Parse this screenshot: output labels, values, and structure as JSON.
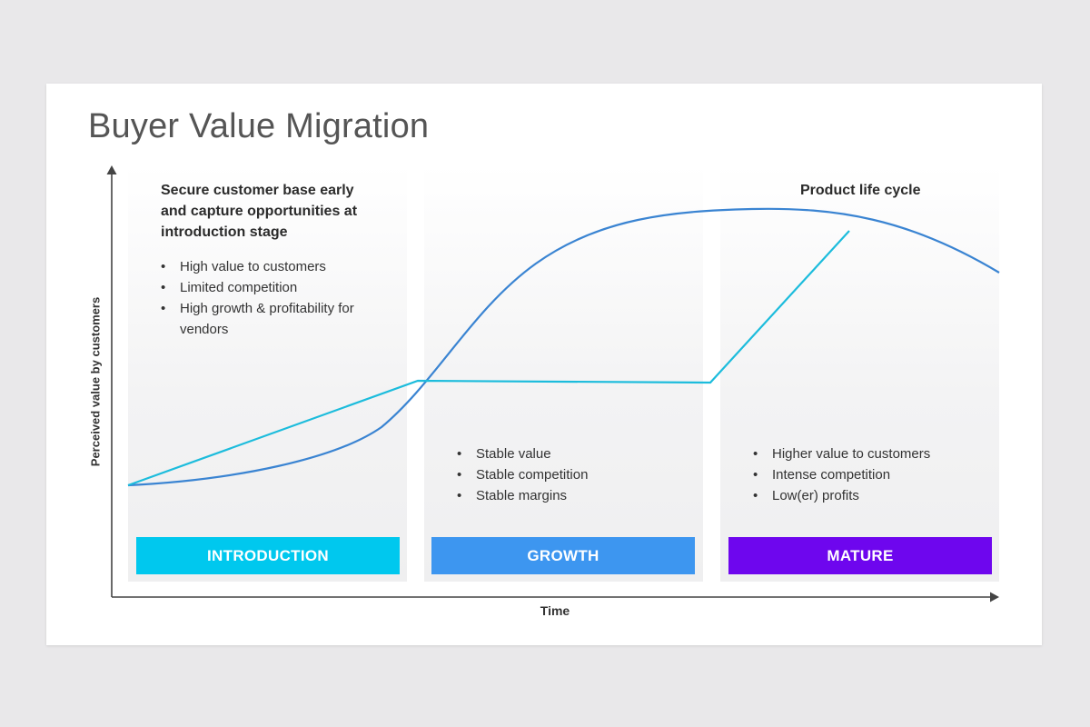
{
  "title": "Buyer Value Migration",
  "axes": {
    "y_label": "Perceived value by customers",
    "x_label": "Time"
  },
  "stages": [
    {
      "label": "INTRODUCTION",
      "color": "#00c8ee"
    },
    {
      "label": "GROWTH",
      "color": "#3d96f0"
    },
    {
      "label": "MATURE",
      "color": "#6e06ee"
    }
  ],
  "introduction": {
    "heading": "Secure customer base early and capture opportunities at introduction stage",
    "bullets": [
      "High value to customers",
      "Limited competition",
      "High growth & profitability for vendors"
    ]
  },
  "growth": {
    "bullets": [
      "Stable value",
      "Stable competition",
      "Stable margins"
    ]
  },
  "mature": {
    "heading": "Product life cycle",
    "bullets": [
      "Higher value to customers",
      "Intense competition",
      "Low(er) profits"
    ]
  },
  "colors": {
    "life_cycle_curve": "#3a84d2",
    "value_line": "#1cbcdc",
    "axis": "#444444"
  }
}
